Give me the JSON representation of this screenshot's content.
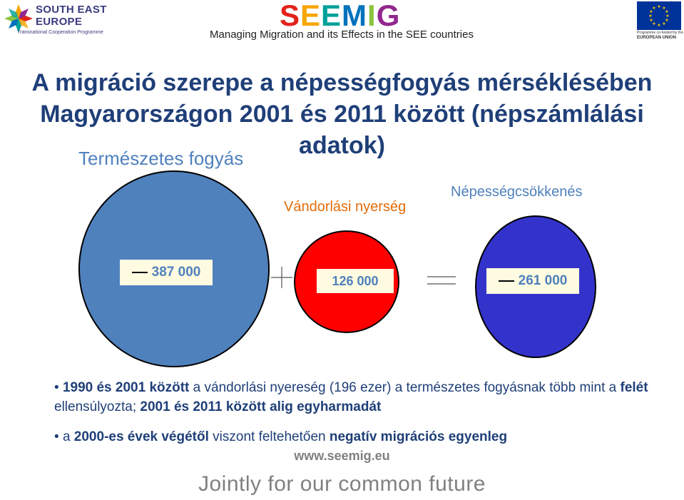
{
  "header": {
    "left_logo": {
      "line1": "SOUTH EAST",
      "line2": "EUROPE",
      "line3": "Transnational Cooperation Programme"
    },
    "center_logo": {
      "text": "SEEMIG",
      "colors": [
        "#e2231a",
        "#f7a600",
        "#00a19a",
        "#0072bc",
        "#8bc53f",
        "#92278f"
      ]
    },
    "tagline": "Managing Migration and its Effects in the SEE countries",
    "eu_logo": {
      "line1": "Programme co-funded by the",
      "line2": "EUROPEAN UNION"
    }
  },
  "title": {
    "line1": "A migráció szerepe a népességfogyás mérséklésében",
    "line2": "Magyarországon 2001 és 2011 között (népszámlálási adatok)"
  },
  "diagram": {
    "natural_decrease": {
      "label": "Természetes fogyás",
      "value": "387 000",
      "color": "#4f81bd"
    },
    "migration_gain": {
      "label": "Vándorlási nyerség",
      "value": "126 000",
      "color": "#ff0000"
    },
    "population_decrease": {
      "label": "Népességcsökkenés",
      "value": "261 000",
      "color": "#3333cc"
    },
    "operator_plus": "+",
    "operator_equals": "="
  },
  "bullets": [
    {
      "p1": "1990 és 2001 között",
      "p2": " a vándorlási nyereség (196 ezer) a természetes fogyásnak több mint a ",
      "p3": "felét",
      "p4": " ellensúlyozta; ",
      "p5": "2001 és 2011 között alig egyharmadát"
    },
    {
      "p1": "a ",
      "p2": "2000-es évek végétől",
      "p3": " viszont feltehetően ",
      "p4": "negatív migrációs egyenleg"
    }
  ],
  "website": "www.seemig.eu",
  "footer_slogan": "Jointly for our common future"
}
